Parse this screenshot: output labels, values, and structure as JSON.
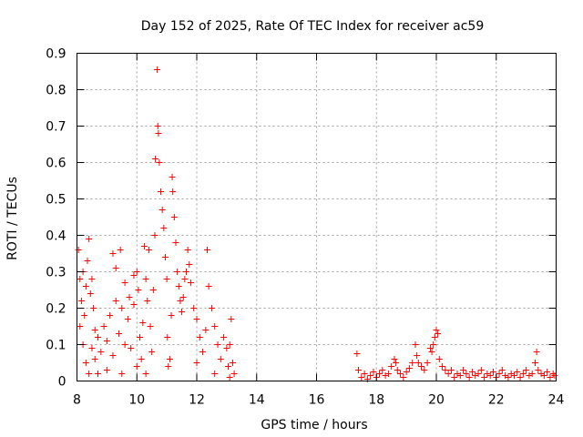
{
  "chart_data": {
    "type": "scatter",
    "title": "Day 152 of 2025, Rate Of TEC Index for receiver ac59",
    "xlabel": "GPS time / hours",
    "ylabel": "ROTI / TECUs",
    "xlim": [
      8,
      24
    ],
    "ylim": [
      0,
      0.9
    ],
    "xticks": [
      8,
      10,
      12,
      14,
      16,
      18,
      20,
      22,
      24
    ],
    "yticks": [
      0,
      0.1,
      0.2,
      0.3,
      0.4,
      0.5,
      0.6,
      0.7,
      0.8,
      0.9
    ],
    "xtick_labels": [
      "8",
      "10",
      "12",
      "14",
      "16",
      "18",
      "20",
      "22",
      "24"
    ],
    "ytick_labels": [
      "0",
      "0.1",
      "0.2",
      "0.3",
      "0.4",
      "0.5",
      "0.6",
      "0.7",
      "0.8",
      "0.9"
    ],
    "grid": true,
    "marker": "+",
    "color": "#ff0000",
    "series": [
      {
        "values": [
          [
            8.05,
            0.36
          ],
          [
            8.1,
            0.28
          ],
          [
            8.15,
            0.22
          ],
          [
            8.2,
            0.3
          ],
          [
            8.25,
            0.18
          ],
          [
            8.3,
            0.26
          ],
          [
            8.35,
            0.33
          ],
          [
            8.4,
            0.39
          ],
          [
            8.45,
            0.24
          ],
          [
            8.5,
            0.28
          ],
          [
            8.55,
            0.2
          ],
          [
            8.6,
            0.14
          ],
          [
            8.1,
            0.15
          ],
          [
            8.2,
            0.1
          ],
          [
            8.3,
            0.05
          ],
          [
            8.4,
            0.02
          ],
          [
            8.5,
            0.09
          ],
          [
            8.6,
            0.06
          ],
          [
            8.7,
            0.12
          ],
          [
            8.8,
            0.08
          ],
          [
            8.9,
            0.15
          ],
          [
            9.0,
            0.11
          ],
          [
            9.1,
            0.18
          ],
          [
            9.2,
            0.07
          ],
          [
            9.3,
            0.22
          ],
          [
            9.4,
            0.13
          ],
          [
            9.5,
            0.2
          ],
          [
            9.6,
            0.1
          ],
          [
            9.7,
            0.17
          ],
          [
            9.8,
            0.09
          ],
          [
            9.9,
            0.21
          ],
          [
            10.0,
            0.3
          ],
          [
            10.05,
            0.25
          ],
          [
            10.1,
            0.12
          ],
          [
            10.15,
            0.06
          ],
          [
            10.2,
            0.16
          ],
          [
            9.2,
            0.35
          ],
          [
            9.3,
            0.31
          ],
          [
            9.45,
            0.36
          ],
          [
            9.6,
            0.27
          ],
          [
            9.75,
            0.23
          ],
          [
            9.9,
            0.29
          ],
          [
            10.25,
            0.37
          ],
          [
            10.3,
            0.28
          ],
          [
            10.35,
            0.22
          ],
          [
            10.4,
            0.36
          ],
          [
            10.45,
            0.15
          ],
          [
            10.5,
            0.08
          ],
          [
            10.55,
            0.25
          ],
          [
            10.6,
            0.4
          ],
          [
            10.62,
            0.61
          ],
          [
            10.68,
            0.855
          ],
          [
            10.7,
            0.7
          ],
          [
            10.72,
            0.68
          ],
          [
            10.75,
            0.6
          ],
          [
            10.8,
            0.52
          ],
          [
            10.85,
            0.47
          ],
          [
            10.9,
            0.42
          ],
          [
            10.95,
            0.34
          ],
          [
            11.0,
            0.28
          ],
          [
            11.02,
            0.12
          ],
          [
            11.05,
            0.04
          ],
          [
            11.1,
            0.06
          ],
          [
            11.15,
            0.18
          ],
          [
            11.18,
            0.56
          ],
          [
            11.2,
            0.52
          ],
          [
            11.25,
            0.45
          ],
          [
            11.3,
            0.38
          ],
          [
            11.35,
            0.3
          ],
          [
            11.4,
            0.26
          ],
          [
            11.45,
            0.22
          ],
          [
            11.5,
            0.19
          ],
          [
            11.55,
            0.23
          ],
          [
            11.6,
            0.28
          ],
          [
            11.65,
            0.3
          ],
          [
            11.7,
            0.36
          ],
          [
            11.75,
            0.32
          ],
          [
            11.8,
            0.27
          ],
          [
            11.9,
            0.2
          ],
          [
            12.0,
            0.17
          ],
          [
            12.1,
            0.12
          ],
          [
            12.2,
            0.08
          ],
          [
            12.3,
            0.14
          ],
          [
            12.35,
            0.36
          ],
          [
            12.4,
            0.26
          ],
          [
            12.5,
            0.2
          ],
          [
            12.6,
            0.15
          ],
          [
            12.7,
            0.1
          ],
          [
            12.8,
            0.06
          ],
          [
            12.9,
            0.12
          ],
          [
            13.0,
            0.09
          ],
          [
            13.05,
            0.04
          ],
          [
            13.1,
            0.1
          ],
          [
            13.15,
            0.17
          ],
          [
            13.2,
            0.05
          ],
          [
            13.25,
            0.02
          ],
          [
            8.7,
            0.02
          ],
          [
            9.0,
            0.03
          ],
          [
            9.5,
            0.02
          ],
          [
            10.0,
            0.04
          ],
          [
            10.3,
            0.02
          ],
          [
            12.0,
            0.05
          ],
          [
            12.6,
            0.02
          ],
          [
            13.1,
            0.01
          ],
          [
            17.35,
            0.075
          ],
          [
            17.4,
            0.03
          ],
          [
            17.5,
            0.01
          ],
          [
            17.6,
            0.02
          ],
          [
            17.7,
            0.005
          ],
          [
            17.8,
            0.015
          ],
          [
            17.9,
            0.025
          ],
          [
            18.0,
            0.01
          ],
          [
            18.1,
            0.02
          ],
          [
            18.2,
            0.03
          ],
          [
            18.3,
            0.015
          ],
          [
            18.4,
            0.02
          ],
          [
            18.5,
            0.04
          ],
          [
            18.6,
            0.06
          ],
          [
            18.65,
            0.05
          ],
          [
            18.7,
            0.03
          ],
          [
            18.8,
            0.02
          ],
          [
            18.9,
            0.01
          ],
          [
            19.0,
            0.025
          ],
          [
            19.1,
            0.035
          ],
          [
            19.2,
            0.05
          ],
          [
            19.3,
            0.1
          ],
          [
            19.35,
            0.07
          ],
          [
            19.4,
            0.05
          ],
          [
            19.5,
            0.04
          ],
          [
            19.6,
            0.03
          ],
          [
            19.7,
            0.05
          ],
          [
            19.8,
            0.09
          ],
          [
            19.85,
            0.08
          ],
          [
            19.9,
            0.1
          ],
          [
            19.95,
            0.12
          ],
          [
            20.0,
            0.14
          ],
          [
            20.05,
            0.13
          ],
          [
            20.1,
            0.06
          ],
          [
            20.2,
            0.04
          ],
          [
            20.3,
            0.03
          ],
          [
            20.4,
            0.02
          ],
          [
            20.5,
            0.03
          ],
          [
            20.6,
            0.01
          ],
          [
            20.7,
            0.02
          ],
          [
            20.8,
            0.015
          ],
          [
            20.9,
            0.03
          ],
          [
            21.0,
            0.02
          ],
          [
            21.1,
            0.01
          ],
          [
            21.2,
            0.025
          ],
          [
            21.3,
            0.015
          ],
          [
            21.4,
            0.02
          ],
          [
            21.5,
            0.03
          ],
          [
            21.6,
            0.01
          ],
          [
            21.7,
            0.02
          ],
          [
            21.8,
            0.015
          ],
          [
            21.9,
            0.025
          ],
          [
            22.0,
            0.01
          ],
          [
            22.1,
            0.02
          ],
          [
            22.2,
            0.03
          ],
          [
            22.3,
            0.015
          ],
          [
            22.4,
            0.01
          ],
          [
            22.5,
            0.02
          ],
          [
            22.6,
            0.015
          ],
          [
            22.7,
            0.025
          ],
          [
            22.8,
            0.01
          ],
          [
            22.9,
            0.02
          ],
          [
            23.0,
            0.03
          ],
          [
            23.1,
            0.015
          ],
          [
            23.2,
            0.02
          ],
          [
            23.3,
            0.05
          ],
          [
            23.35,
            0.08
          ],
          [
            23.4,
            0.03
          ],
          [
            23.5,
            0.02
          ],
          [
            23.6,
            0.015
          ],
          [
            23.7,
            0.025
          ],
          [
            23.8,
            0.01
          ],
          [
            23.9,
            0.02
          ],
          [
            23.95,
            0.015
          ]
        ]
      }
    ]
  }
}
